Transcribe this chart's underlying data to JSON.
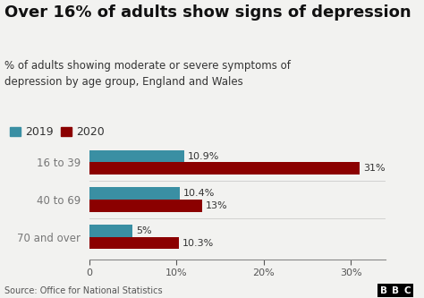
{
  "title": "Over 16% of adults show signs of depression",
  "subtitle": "% of adults showing moderate or severe symptoms of\ndepression by age group, England and Wales",
  "source": "Source: Office for National Statistics",
  "categories": [
    "16 to 39",
    "40 to 69",
    "70 and over"
  ],
  "values_2019": [
    10.9,
    10.4,
    5.0
  ],
  "values_2020": [
    31.0,
    13.0,
    10.3
  ],
  "labels_2019": [
    "10.9%",
    "10.4%",
    "5%"
  ],
  "labels_2020": [
    "31%",
    "13%",
    "10.3%"
  ],
  "color_2019": "#3a8fa3",
  "color_2020": "#8b0000",
  "background_color": "#f2f2f0",
  "title_fontsize": 13,
  "subtitle_fontsize": 8.5,
  "legend_fontsize": 9,
  "bar_label_fontsize": 8,
  "ytick_fontsize": 8.5,
  "xtick_fontsize": 8,
  "legend_labels": [
    "2019",
    "2020"
  ],
  "xlim": [
    0,
    34
  ],
  "xticks": [
    0,
    10,
    20,
    30
  ],
  "xticklabels": [
    "0",
    "10%",
    "20%",
    "30%"
  ]
}
